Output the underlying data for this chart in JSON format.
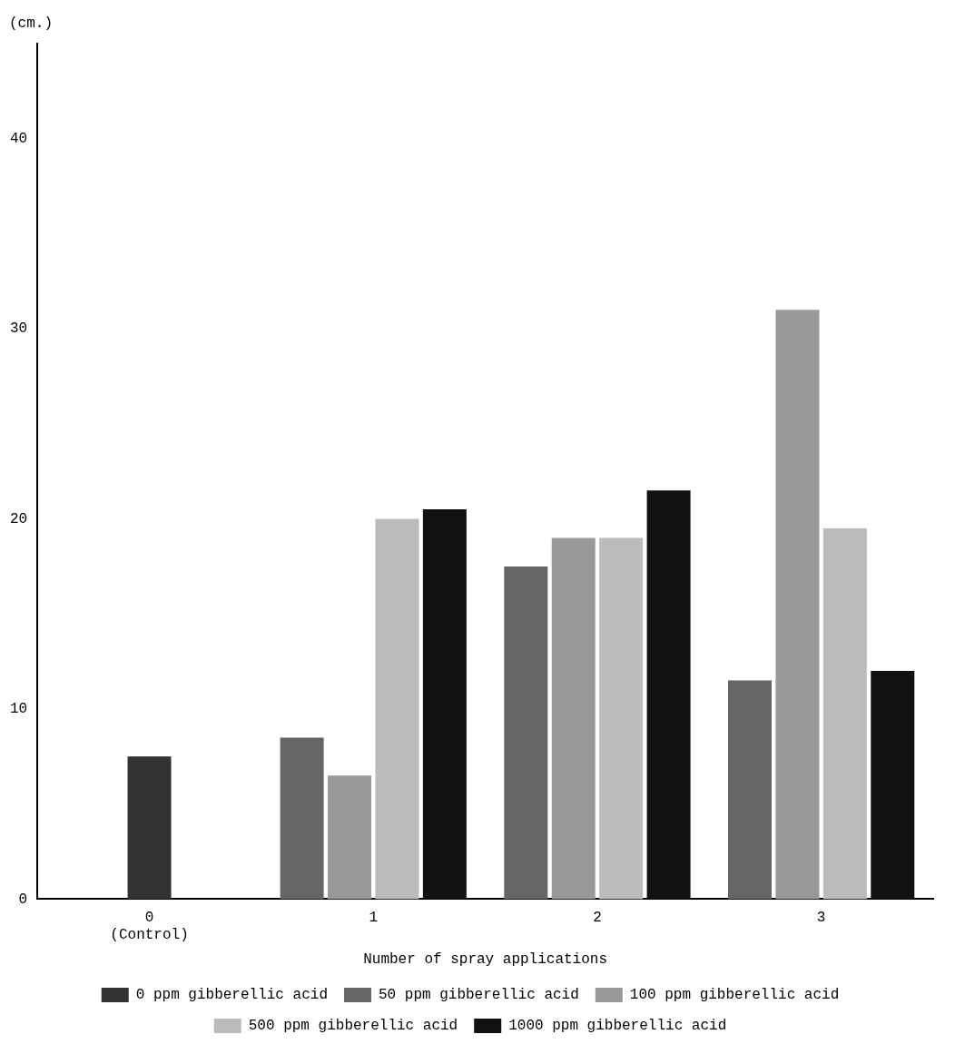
{
  "chart_data": {
    "type": "bar",
    "ylabel": "(cm.)",
    "xlabel": "Number of spray applications",
    "categories": [
      "0\n(Control)",
      "1",
      "2",
      "3"
    ],
    "series": [
      {
        "name": "0 ppm gibberellic acid",
        "color": "#333333",
        "values": [
          7.5,
          null,
          null,
          null
        ]
      },
      {
        "name": "50 ppm gibberellic acid",
        "color": "#666666",
        "values": [
          null,
          8.5,
          17.5,
          11.5
        ]
      },
      {
        "name": "100 ppm gibberellic acid",
        "color": "#999999",
        "values": [
          null,
          6.5,
          19,
          31
        ]
      },
      {
        "name": "500 ppm gibberellic acid",
        "color": "#bbbbbb",
        "values": [
          null,
          20,
          19,
          19.5
        ]
      },
      {
        "name": "1000 ppm gibberellic acid",
        "color": "#111111",
        "values": [
          null,
          20.5,
          21.5,
          12
        ]
      }
    ],
    "ylim": [
      0,
      45
    ],
    "yticks": [
      0,
      10,
      20,
      30,
      40
    ],
    "grid": false,
    "legend": "bottom"
  }
}
